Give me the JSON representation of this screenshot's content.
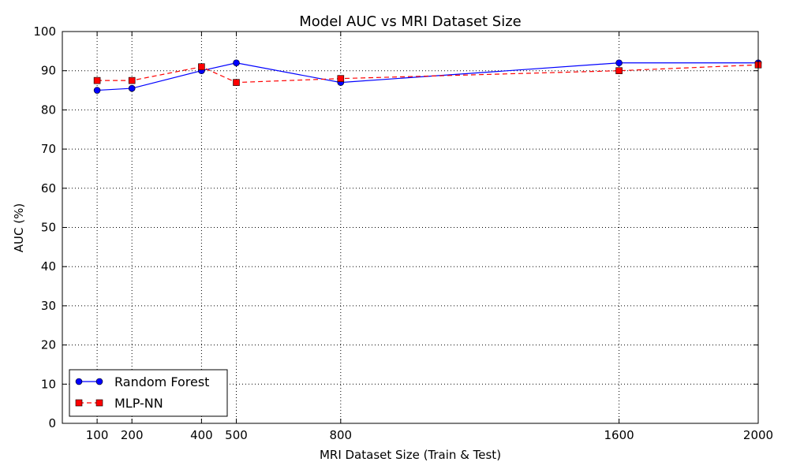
{
  "chart_data": {
    "type": "line",
    "title": "Model AUC vs MRI Dataset Size",
    "xlabel": "MRI Dataset Size (Train & Test)",
    "ylabel": "AUC (%)",
    "x": [
      100,
      200,
      400,
      500,
      800,
      1600,
      2000
    ],
    "xlim": [
      0,
      2000
    ],
    "ylim": [
      0,
      100
    ],
    "x_ticks": [
      "100",
      "200",
      "400",
      "500",
      "800",
      "1600",
      "2000"
    ],
    "y_ticks": [
      "0",
      "10",
      "20",
      "30",
      "40",
      "50",
      "60",
      "70",
      "80",
      "90",
      "100"
    ],
    "grid": true,
    "legend_position": "bottom-left",
    "series": [
      {
        "name": "Random Forest",
        "values": [
          85,
          85.5,
          90,
          92,
          87,
          92,
          92
        ],
        "color": "#0000ff",
        "line_style": "solid",
        "marker": "circle"
      },
      {
        "name": "MLP-NN",
        "values": [
          87.5,
          87.5,
          91,
          87,
          88,
          90,
          91.5
        ],
        "color": "#ff0000",
        "line_style": "dashed",
        "marker": "square"
      }
    ]
  }
}
